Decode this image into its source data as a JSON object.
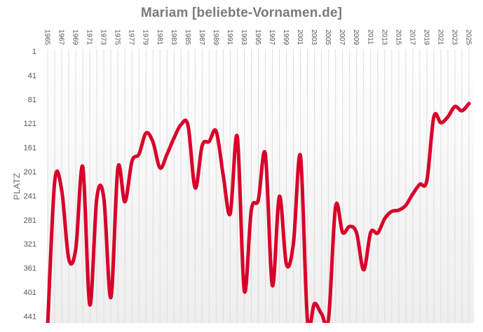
{
  "title": "Mariam [beliebte-Vornamen.de]",
  "colors": {
    "line": "#d8002a",
    "title": "#7b7b7b",
    "grid": "#dddddd",
    "plot_bg_top": "#ffffff",
    "plot_bg_bottom": "#eeeeee"
  },
  "chart_data": {
    "type": "line",
    "title": "Mariam [beliebte-Vornamen.de]",
    "xlabel": "",
    "ylabel": "PLATZ",
    "y_inverted": true,
    "ylim": [
      1,
      460
    ],
    "yticks": [
      1,
      41,
      81,
      121,
      161,
      201,
      241,
      281,
      321,
      361,
      401,
      441
    ],
    "xticks": [
      1965,
      1967,
      1969,
      1971,
      1973,
      1975,
      1977,
      1979,
      1981,
      1983,
      1985,
      1987,
      1989,
      1991,
      1993,
      1995,
      1997,
      1999,
      2001,
      2003,
      2005,
      2007,
      2009,
      2011,
      2013,
      2015,
      2017,
      2019,
      2021,
      2023,
      2025
    ],
    "grid": "vertical per year",
    "legend": "none",
    "x": [
      1965,
      1966,
      1967,
      1968,
      1969,
      1970,
      1971,
      1972,
      1973,
      1974,
      1975,
      1976,
      1977,
      1978,
      1979,
      1980,
      1981,
      1982,
      1983,
      1984,
      1985,
      1986,
      1987,
      1988,
      1989,
      1990,
      1991,
      1992,
      1993,
      1994,
      1995,
      1996,
      1997,
      1998,
      1999,
      2000,
      2001,
      2002,
      2003,
      2004,
      2005,
      2006,
      2007,
      2008,
      2009,
      2010,
      2011,
      2012,
      2013,
      2014,
      2015,
      2016,
      2017,
      2018,
      2019,
      2020,
      2021,
      2022,
      2023,
      2024,
      2025
    ],
    "series": [
      {
        "name": "Mariam",
        "values": [
          455,
          218,
          232,
          346,
          329,
          193,
          422,
          245,
          245,
          410,
          195,
          251,
          184,
          172,
          137,
          152,
          195,
          172,
          145,
          123,
          125,
          228,
          158,
          151,
          134,
          207,
          271,
          143,
          399,
          265,
          248,
          172,
          390,
          242,
          355,
          320,
          175,
          448,
          420,
          437,
          445,
          259,
          302,
          292,
          303,
          364,
          302,
          303,
          279,
          267,
          265,
          257,
          238,
          222,
          216,
          110,
          120,
          110,
          93,
          100,
          88
        ]
      }
    ]
  }
}
